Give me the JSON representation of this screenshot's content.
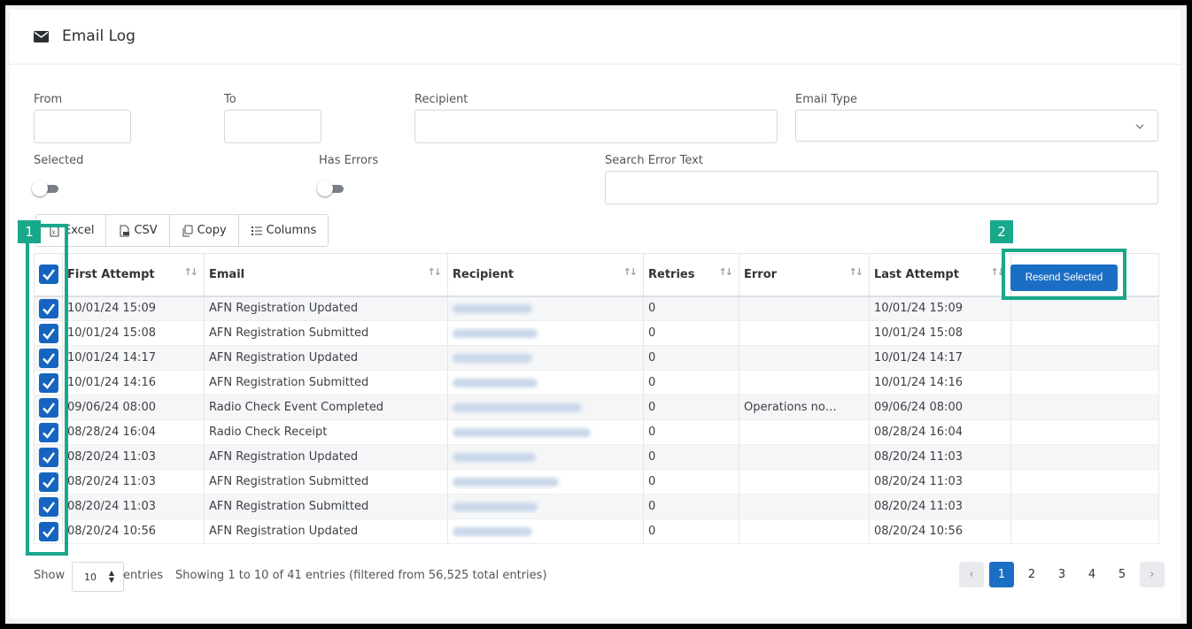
{
  "header": {
    "title": "Email Log",
    "icon": "envelope-icon"
  },
  "filters": {
    "from_label": "From",
    "to_label": "To",
    "recipient_label": "Recipient",
    "email_type_label": "Email Type",
    "selected_label": "Selected",
    "has_errors_label": "Has Errors",
    "search_error_label": "Search Error Text",
    "from_value": "",
    "to_value": "",
    "recipient_value": "",
    "search_error_value": "",
    "selected_toggle": false,
    "has_errors_toggle": false
  },
  "toolbar": {
    "excel": "Excel",
    "csv": "CSV",
    "copy": "Copy",
    "columns": "Columns"
  },
  "table": {
    "columns": [
      "",
      "First Attempt",
      "Email",
      "Recipient",
      "Retries",
      "Error",
      "Last Attempt"
    ],
    "resend_label": "Resend Selected",
    "rows": [
      {
        "first": "10/01/24 15:09",
        "email": "AFN Registration Updated",
        "retries": "0",
        "error": "",
        "last": "10/01/24 15:09"
      },
      {
        "first": "10/01/24 15:08",
        "email": "AFN Registration Submitted",
        "retries": "0",
        "error": "",
        "last": "10/01/24 15:08"
      },
      {
        "first": "10/01/24 14:17",
        "email": "AFN Registration Updated",
        "retries": "0",
        "error": "",
        "last": "10/01/24 14:17"
      },
      {
        "first": "10/01/24 14:16",
        "email": "AFN Registration Submitted",
        "retries": "0",
        "error": "",
        "last": "10/01/24 14:16"
      },
      {
        "first": "09/06/24 08:00",
        "email": "Radio Check Event Completed",
        "retries": "0",
        "error": "Operations no…",
        "last": "09/06/24 08:00"
      },
      {
        "first": "08/28/24 16:04",
        "email": "Radio Check Receipt",
        "retries": "0",
        "error": "",
        "last": "08/28/24 16:04"
      },
      {
        "first": "08/20/24 11:03",
        "email": "AFN Registration Updated",
        "retries": "0",
        "error": "",
        "last": "08/20/24 11:03"
      },
      {
        "first": "08/20/24 11:03",
        "email": "AFN Registration Submitted",
        "retries": "0",
        "error": "",
        "last": "08/20/24 11:03"
      },
      {
        "first": "08/20/24 11:03",
        "email": "AFN Registration Submitted",
        "retries": "0",
        "error": "",
        "last": "08/20/24 11:03"
      },
      {
        "first": "08/20/24 10:56",
        "email": "AFN Registration Updated",
        "retries": "0",
        "error": "",
        "last": "08/20/24 10:56"
      }
    ]
  },
  "footer": {
    "show": "Show",
    "length": "10",
    "entries": "entries",
    "info": "Showing 1 to 10 of 41 entries (filtered from 56,525 total entries)",
    "pages": [
      "1",
      "2",
      "3",
      "4",
      "5"
    ],
    "prev": "‹",
    "next": "›"
  },
  "annotations": {
    "badge1": "1",
    "badge2": "2",
    "color": "#18a88a"
  },
  "colors": {
    "primary": "#1a6fc4",
    "checkbox": "#1565c0"
  }
}
